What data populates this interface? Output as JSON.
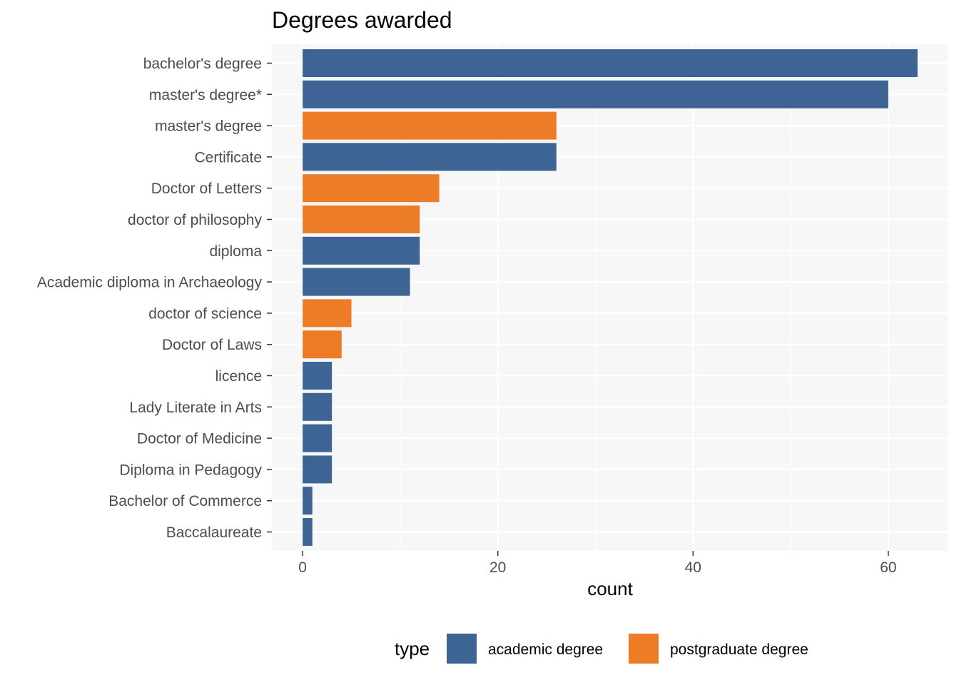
{
  "chart_data": {
    "type": "bar",
    "orientation": "horizontal",
    "title": "Degrees awarded",
    "xlabel": "count",
    "ylabel": "",
    "xlim": [
      -3.15,
      66.15
    ],
    "xticks": [
      0,
      20,
      40,
      60
    ],
    "grid": true,
    "legend": {
      "title": "type",
      "position": "bottom"
    },
    "categories": [
      "bachelor's degree",
      "master's degree*",
      "master's degree",
      "Certificate",
      "Doctor of Letters",
      "doctor of philosophy",
      "diploma",
      "Academic diploma in Archaeology",
      "doctor of science",
      "Doctor of Laws",
      "licence",
      "Lady Literate in Arts",
      "Doctor of Medicine",
      "Diploma in Pedagogy",
      "Bachelor of Commerce",
      "Baccalaureate"
    ],
    "values": [
      63,
      60,
      26,
      26,
      14,
      12,
      12,
      11,
      5,
      4,
      3,
      3,
      3,
      3,
      1,
      1
    ],
    "types": [
      "academic degree",
      "academic degree",
      "postgraduate degree",
      "academic degree",
      "postgraduate degree",
      "postgraduate degree",
      "academic degree",
      "academic degree",
      "postgraduate degree",
      "postgraduate degree",
      "academic degree",
      "academic degree",
      "academic degree",
      "academic degree",
      "academic degree",
      "academic degree"
    ],
    "series": [
      {
        "name": "academic degree",
        "color": "#3e6395"
      },
      {
        "name": "postgraduate degree",
        "color": "#ec7c25"
      }
    ]
  }
}
